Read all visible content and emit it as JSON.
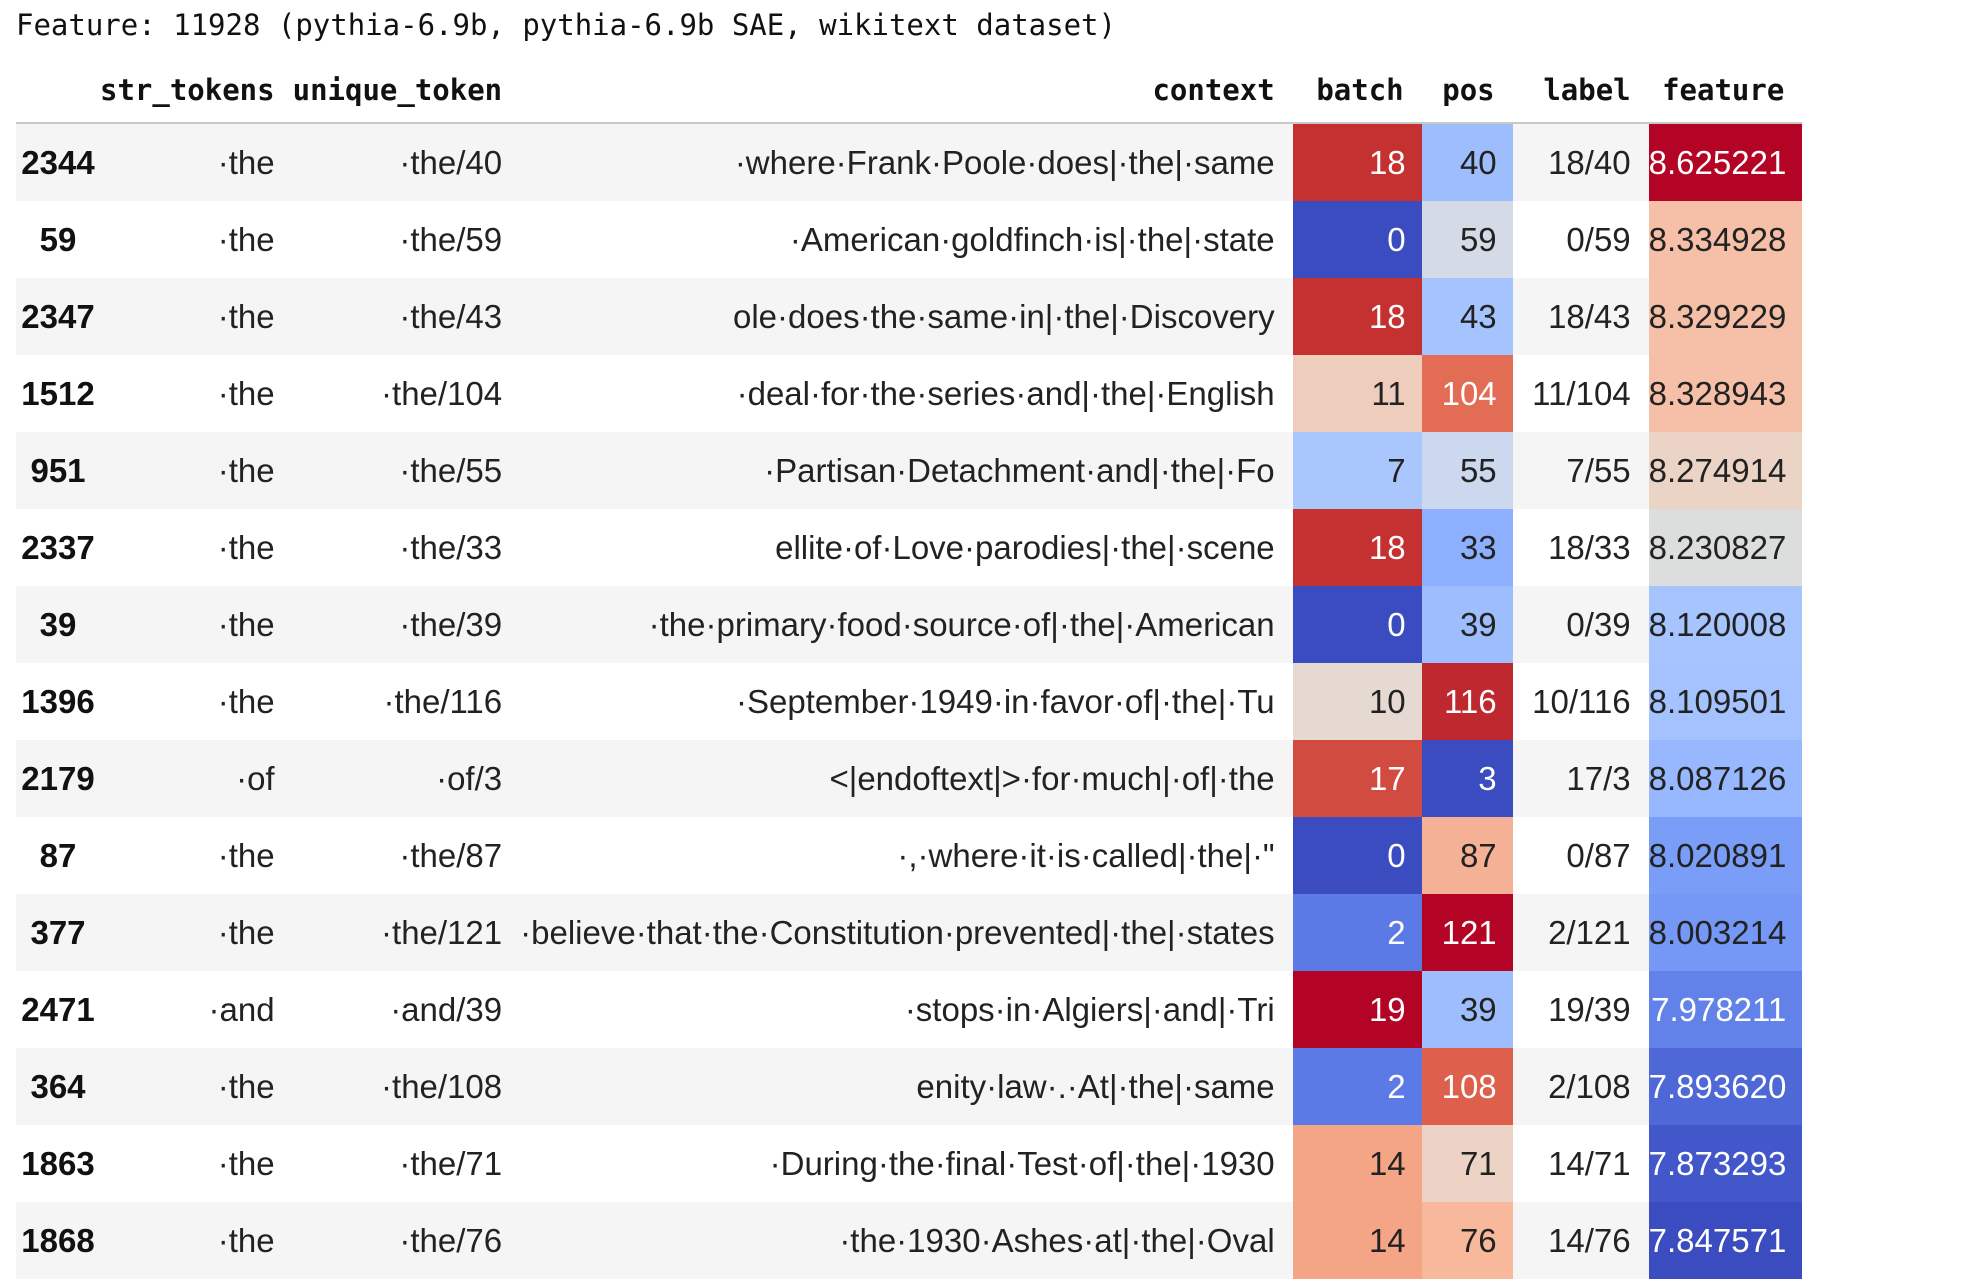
{
  "caption": "Feature: 11928 (pythia-6.9b, pythia-6.9b SAE, wikitext dataset)",
  "columns": [
    "",
    "str_tokens",
    "unique_token",
    "context",
    "batch",
    "pos",
    "label",
    "feature"
  ],
  "rows": [
    {
      "index": "2344",
      "str_tokens": "·the",
      "unique_token": "·the/40",
      "context": "·where·Frank·Poole·does|·the|·same",
      "batch": "18",
      "pos": "40",
      "label": "18/40",
      "feature": "8.625221"
    },
    {
      "index": "59",
      "str_tokens": "·the",
      "unique_token": "·the/59",
      "context": "·American·goldfinch·is|·the|·state",
      "batch": "0",
      "pos": "59",
      "label": "0/59",
      "feature": "8.334928"
    },
    {
      "index": "2347",
      "str_tokens": "·the",
      "unique_token": "·the/43",
      "context": "ole·does·the·same·in|·the|·Discovery",
      "batch": "18",
      "pos": "43",
      "label": "18/43",
      "feature": "8.329229"
    },
    {
      "index": "1512",
      "str_tokens": "·the",
      "unique_token": "·the/104",
      "context": "·deal·for·the·series·and|·the|·English",
      "batch": "11",
      "pos": "104",
      "label": "11/104",
      "feature": "8.328943"
    },
    {
      "index": "951",
      "str_tokens": "·the",
      "unique_token": "·the/55",
      "context": "·Partisan·Detachment·and|·the|·Fo",
      "batch": "7",
      "pos": "55",
      "label": "7/55",
      "feature": "8.274914"
    },
    {
      "index": "2337",
      "str_tokens": "·the",
      "unique_token": "·the/33",
      "context": "ellite·of·Love·parodies|·the|·scene",
      "batch": "18",
      "pos": "33",
      "label": "18/33",
      "feature": "8.230827"
    },
    {
      "index": "39",
      "str_tokens": "·the",
      "unique_token": "·the/39",
      "context": "·the·primary·food·source·of|·the|·American",
      "batch": "0",
      "pos": "39",
      "label": "0/39",
      "feature": "8.120008"
    },
    {
      "index": "1396",
      "str_tokens": "·the",
      "unique_token": "·the/116",
      "context": "·September·1949·in·favor·of|·the|·Tu",
      "batch": "10",
      "pos": "116",
      "label": "10/116",
      "feature": "8.109501"
    },
    {
      "index": "2179",
      "str_tokens": "·of",
      "unique_token": "·of/3",
      "context": "<|endoftext|>·for·much|·of|·the",
      "batch": "17",
      "pos": "3",
      "label": "17/3",
      "feature": "8.087126"
    },
    {
      "index": "87",
      "str_tokens": "·the",
      "unique_token": "·the/87",
      "context": "·,·where·it·is·called|·the|·\"",
      "batch": "0",
      "pos": "87",
      "label": "0/87",
      "feature": "8.020891"
    },
    {
      "index": "377",
      "str_tokens": "·the",
      "unique_token": "·the/121",
      "context": "·believe·that·the·Constitution·prevented|·the|·states",
      "batch": "2",
      "pos": "121",
      "label": "2/121",
      "feature": "8.003214"
    },
    {
      "index": "2471",
      "str_tokens": "·and",
      "unique_token": "·and/39",
      "context": "·stops·in·Algiers|·and|·Tri",
      "batch": "19",
      "pos": "39",
      "label": "19/39",
      "feature": "7.978211"
    },
    {
      "index": "364",
      "str_tokens": "·the",
      "unique_token": "·the/108",
      "context": "enity·law·.·At|·the|·same",
      "batch": "2",
      "pos": "108",
      "label": "2/108",
      "feature": "7.893620"
    },
    {
      "index": "1863",
      "str_tokens": "·the",
      "unique_token": "·the/71",
      "context": "·During·the·final·Test·of|·the|·1930",
      "batch": "14",
      "pos": "71",
      "label": "14/71",
      "feature": "7.873293"
    },
    {
      "index": "1868",
      "str_tokens": "·the",
      "unique_token": "·the/76",
      "context": "·the·1930·Ashes·at|·the|·Oval",
      "batch": "14",
      "pos": "76",
      "label": "14/76",
      "feature": "7.847571"
    }
  ],
  "colors": {
    "batch": [
      "#c53030",
      "#3a4cc0",
      "#c53030",
      "#efcdbd",
      "#aac7fd",
      "#c53030",
      "#3a4cc0",
      "#e5d9d2",
      "#d24b40",
      "#3a4cc0",
      "#5b7ae5",
      "#b40426",
      "#5b7ae5",
      "#f3a586",
      "#f3a586"
    ],
    "pos": [
      "#9dbdfc",
      "#d4dbe6",
      "#a5c3fe",
      "#e36c55",
      "#cbd8ee",
      "#8db0fe",
      "#9dbdfc",
      "#c0282f",
      "#3b4cc0",
      "#f4b195",
      "#b40426",
      "#9dbdfc",
      "#de5f4b",
      "#ecd3c5",
      "#f7b89c"
    ],
    "feature": [
      "#b40426",
      "#f5c0a7",
      "#f5c0a7",
      "#f5c0a7",
      "#ebd3c6",
      "#dcdddd",
      "#a6c4fe",
      "#a3c2fe",
      "#97b8ff",
      "#7a9df8",
      "#7597f6",
      "#6282ea",
      "#4e68d8",
      "#4257c9",
      "#3b4cc0"
    ],
    "light_text": "#ffffff",
    "dark_text": "#222222"
  }
}
